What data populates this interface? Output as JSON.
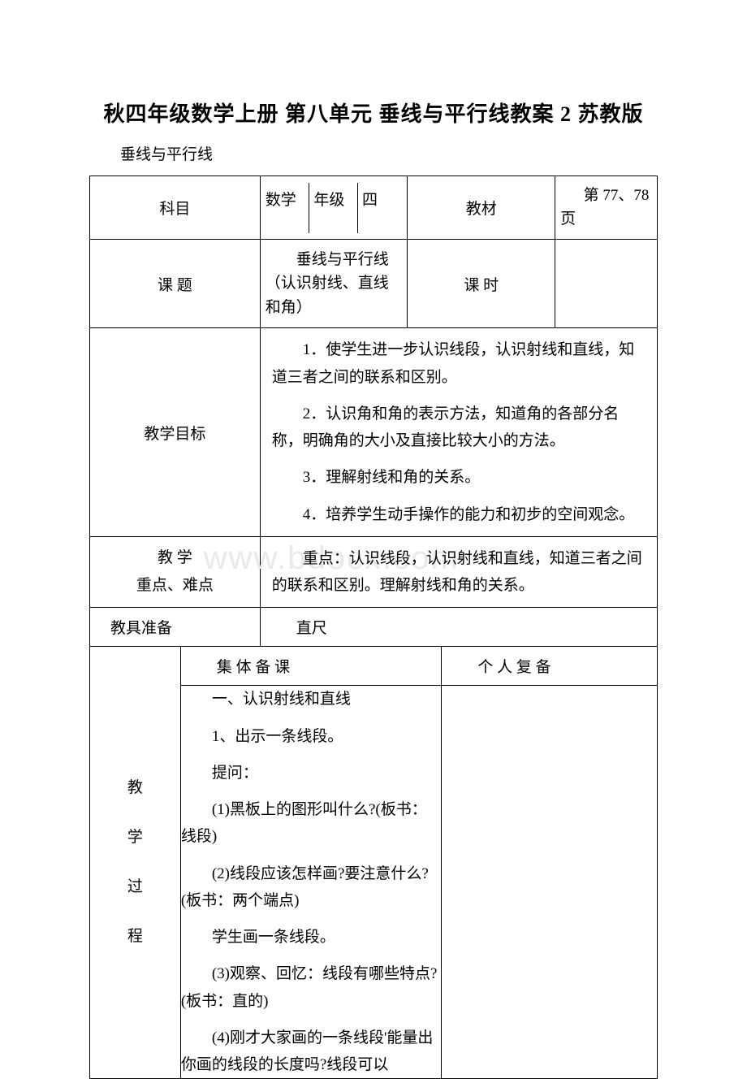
{
  "title": "秋四年级数学上册 第八单元 垂线与平行线教案 2 苏教版",
  "subtitle": "垂线与平行线",
  "row1": {
    "label": "科目",
    "c2a": "数学",
    "c2b": "年级",
    "c2c": "四",
    "c3": "教材",
    "c4": "第 77、78 页"
  },
  "row2": {
    "label": "课 题",
    "c2": "垂线与平行线（认识射线、直线和角）",
    "c3": "课 时",
    "c4": ""
  },
  "goalsLabel": "教学目标",
  "goals": [
    "1．使学生进一步认识线段，认识射线和直线，知道三者之间的联系和区别。",
    "2．认识角和角的表示方法，知道角的各部分名称，明确角的大小及直接比较大小的方法。",
    "3．理解射线和角的关系。",
    "4．培养学生动手操作的能力和初步的空间观念。"
  ],
  "keyLabel1": "教 学",
  "keyLabel2": "重点、难点",
  "keyText": "重点：认识线段，认识射线和直线，知道三者之间的联系和区别。理解射线和角的关系。",
  "toolsLabel": "教具准备",
  "toolsText": "直尺",
  "colHeaderA": "集 体 备 课",
  "colHeaderB": "个 人 复 备",
  "procLabel": "教\n学\n过\n程",
  "content": [
    "一、认识射线和直线",
    "1、出示一条线段。",
    "提问：",
    "(1)黑板上的图形叫什么?(板书：线段)",
    "(2)线段应该怎样画?要注意什么?(板书：两个端点)",
    "学生画一条线段。",
    "(3)观察、回忆：线段有哪些特点?(板书：直的)",
    "(4)刚才大家画的一条线段'能量出你画的线段的长度吗?线段可以"
  ],
  "watermark": "www.bdocx.com"
}
